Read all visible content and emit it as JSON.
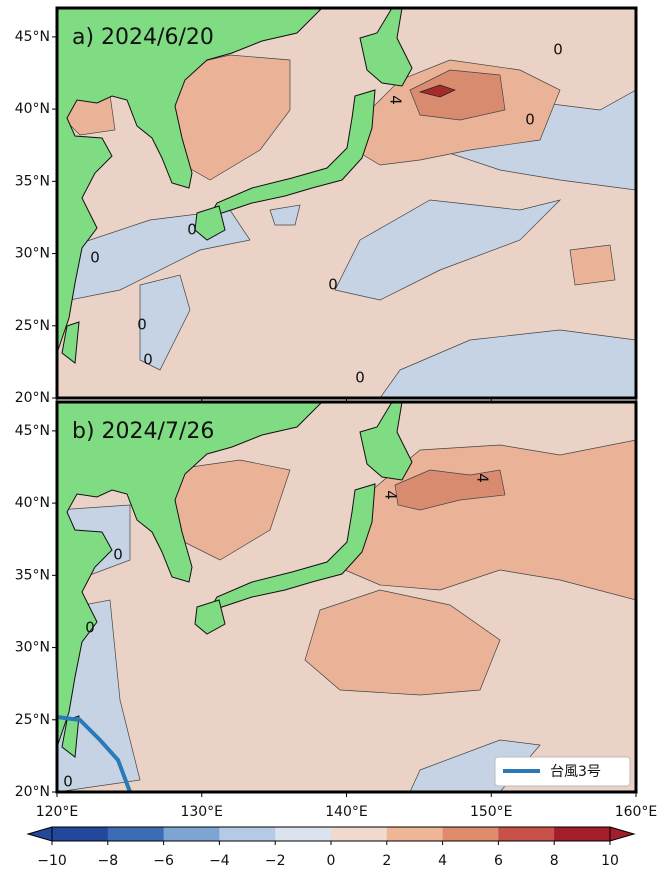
{
  "panels": [
    {
      "label": "a) 2024/6/20",
      "contour_labels": [
        "4",
        "0",
        "0",
        "0",
        "0",
        "0",
        "0",
        "0",
        "0"
      ]
    },
    {
      "label": "b) 2024/7/26",
      "contour_labels": [
        "4",
        "4",
        "0",
        "0",
        "0"
      ]
    }
  ],
  "map": {
    "xlim": [
      120,
      160
    ],
    "ylim": [
      20,
      47
    ],
    "xticks": [
      {
        "value": 120,
        "label": "120°E"
      },
      {
        "value": 130,
        "label": "130°E"
      },
      {
        "value": 140,
        "label": "140°E"
      },
      {
        "value": 150,
        "label": "150°E"
      },
      {
        "value": 160,
        "label": "160°E"
      }
    ],
    "yticks": [
      {
        "value": 20,
        "label": "20°N"
      },
      {
        "value": 25,
        "label": "25°N"
      },
      {
        "value": 30,
        "label": "30°N"
      },
      {
        "value": 35,
        "label": "35°N"
      },
      {
        "value": 40,
        "label": "40°N"
      },
      {
        "value": 45,
        "label": "45°N"
      }
    ]
  },
  "legend": {
    "label": "台風3号",
    "color": "#2a7ab8"
  },
  "colorbar": {
    "range": [
      -10,
      10
    ],
    "ticks": [
      {
        "value": -10,
        "label": "−10"
      },
      {
        "value": -8,
        "label": "−8"
      },
      {
        "value": -6,
        "label": "−6"
      },
      {
        "value": -4,
        "label": "−4"
      },
      {
        "value": -2,
        "label": "−2"
      },
      0,
      2,
      4,
      6,
      8,
      10
    ],
    "colors": [
      "#23479a",
      "#3b6db5",
      "#7ea5d2",
      "#b5cbe5",
      "#dbe3ef",
      "#f0d9cd",
      "#efb597",
      "#e08c6c",
      "#c8524a",
      "#a31d2b"
    ]
  }
}
